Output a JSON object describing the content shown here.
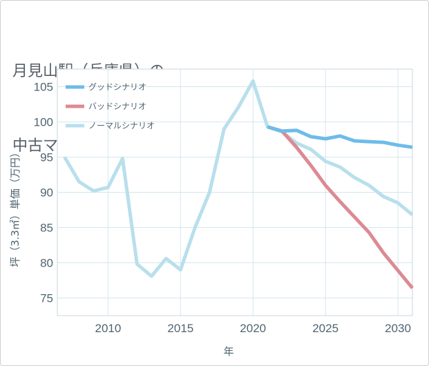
{
  "page": {
    "title_line1": "月見山駅（兵庫県）の",
    "title_line2": "中古マンションの価格推移"
  },
  "chart_data": {
    "type": "line",
    "title": "月見山駅（兵庫県）の中古マンションの価格推移",
    "xlabel": "年",
    "ylabel": "坪（3.3㎡）単価（万円）",
    "xlim": [
      2006.5,
      2031
    ],
    "ylim": [
      72.5,
      107.5
    ],
    "grid": true,
    "legend_position": "top-left",
    "x_ticks": [
      2010,
      2015,
      2020,
      2025,
      2030
    ],
    "y_ticks": [
      75,
      80,
      85,
      90,
      95,
      100,
      105
    ],
    "series": [
      {
        "name": "グッドシナリオ",
        "color": "#6dbcea",
        "x": [
          2021,
          2022,
          2023,
          2024,
          2025,
          2026,
          2027,
          2028,
          2029,
          2030,
          2031
        ],
        "y": [
          99.3,
          98.7,
          98.8,
          97.9,
          97.6,
          98.0,
          97.3,
          97.2,
          97.1,
          96.7,
          96.4
        ]
      },
      {
        "name": "バッドシナリオ",
        "color": "#dc8a93",
        "x": [
          2021,
          2022,
          2023,
          2024,
          2025,
          2026,
          2027,
          2028,
          2029,
          2030,
          2031
        ],
        "y": [
          99.3,
          98.7,
          96.4,
          93.8,
          91.0,
          88.7,
          86.5,
          84.3,
          81.4,
          78.9,
          76.4
        ]
      },
      {
        "name": "ノーマルシナリオ",
        "color": "#b8dfec",
        "x": [
          2007,
          2008,
          2009,
          2010,
          2011,
          2012,
          2013,
          2014,
          2015,
          2016,
          2017,
          2018,
          2019,
          2020,
          2021,
          2022,
          2023,
          2024,
          2025,
          2026,
          2027,
          2028,
          2029,
          2030,
          2031
        ],
        "y": [
          95.0,
          91.5,
          90.2,
          90.7,
          94.8,
          79.8,
          78.1,
          80.6,
          79.0,
          85.0,
          90.0,
          99.0,
          102.1,
          105.8,
          99.3,
          98.6,
          97.0,
          96.1,
          94.4,
          93.6,
          92.1,
          91.0,
          89.4,
          88.5,
          86.8
        ]
      }
    ]
  }
}
